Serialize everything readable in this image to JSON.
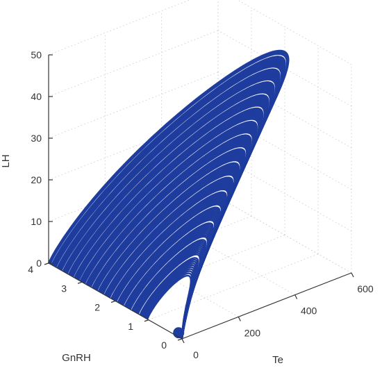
{
  "chart_data": {
    "type": "line",
    "projection": "3d",
    "title": "",
    "series_color": "#1f3d9e",
    "gap_color": "#ffffff",
    "grid": true,
    "grid_style": "dotted",
    "axes": {
      "x": {
        "label": "Te",
        "lim": [
          0,
          600
        ],
        "ticks": [
          0,
          200,
          400,
          600
        ]
      },
      "y": {
        "label": "GnRH",
        "lim": [
          0,
          4
        ],
        "ticks": [
          0,
          1,
          2,
          3,
          4
        ]
      },
      "z": {
        "label": "LH",
        "lim": [
          0,
          50
        ],
        "ticks": [
          0,
          10,
          20,
          30,
          40,
          50
        ]
      }
    },
    "attractor": {
      "description_of_shape": "dense family of nested closed orbits",
      "inner_orbit_extent": {
        "Te": [
          0,
          80
        ],
        "GnRH": [
          0,
          1.0
        ],
        "LH": [
          0,
          10
        ]
      },
      "outer_orbit_extent": {
        "Te": [
          0,
          600
        ],
        "GnRH": [
          0,
          4
        ],
        "LH": [
          0,
          44
        ]
      },
      "equilibrium_point": {
        "Te": 0,
        "GnRH": 0.1,
        "LH": 1
      }
    }
  }
}
